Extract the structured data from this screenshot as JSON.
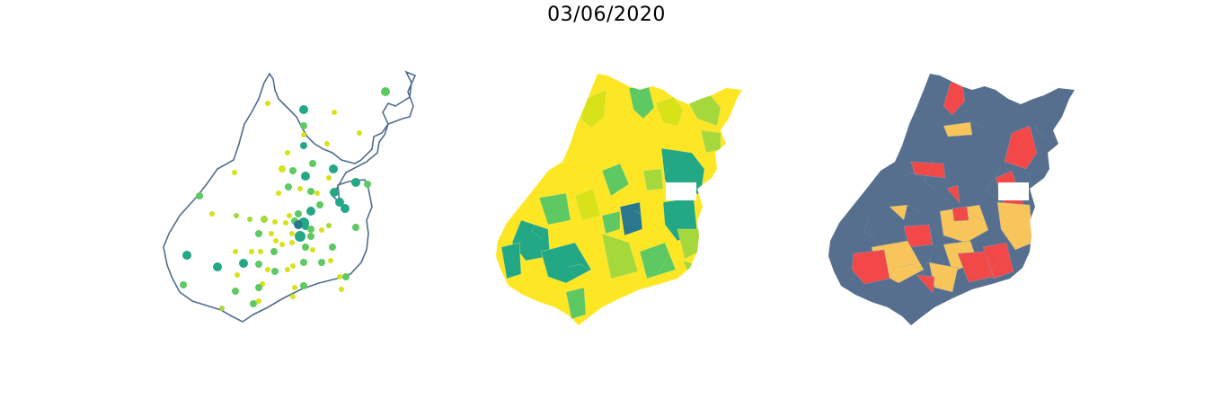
{
  "title": "03/06/2020",
  "colors": {
    "outline": "#4f6d8f",
    "viridis_dark": "#2a788e",
    "viridis_teal": "#22a884",
    "viridis_green": "#5ec962",
    "viridis_lime": "#a5d93b",
    "viridis_yellow": "#fde725",
    "viridis_olive": "#d8e219",
    "risk_base": "#566f8e",
    "risk_high": "#f34848",
    "risk_medium": "#f7c55a",
    "hole": "#ffffff"
  },
  "panels": [
    {
      "kind": "bubble-map"
    },
    {
      "kind": "choropleth-continuous"
    },
    {
      "kind": "choropleth-categorical"
    }
  ]
}
